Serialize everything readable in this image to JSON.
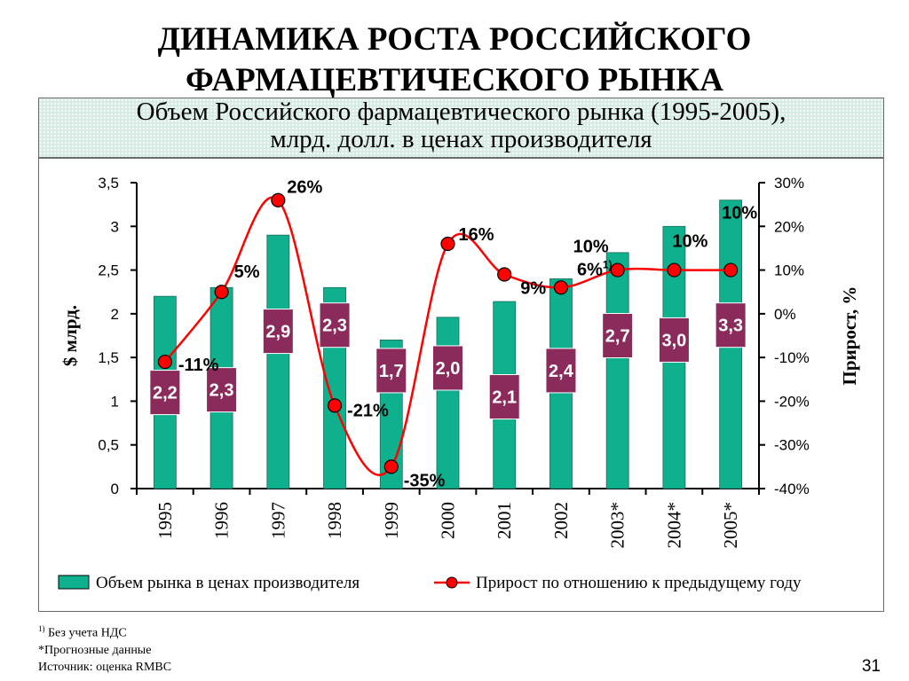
{
  "slide_title": "ДИНАМИКА РОСТА РОССИЙСКОГО ФАРМАЦЕВТИЧЕСКОГО РЫНКА",
  "subtitle_line1": "Объем Российского фармацевтического рынка (1995-2005),",
  "subtitle_line2": "млрд. долл. в ценах производителя",
  "footnote_1_marker": "1)",
  "footnote_1": "Без учета НДС",
  "footnote_2": "*Прогнозные данные",
  "source": "Источник: оценка RMBC",
  "page_number": "31",
  "colors": {
    "bar": "#0fb08e",
    "label_box": "#8a2b5c",
    "line": "#ff0000",
    "subtitle_bg": "#d6ece4"
  },
  "chart_data": {
    "type": "bar+line",
    "categories": [
      "1995",
      "1996",
      "1997",
      "1998",
      "1999",
      "2000",
      "2001",
      "2002",
      "2003*",
      "2004*",
      "2005*"
    ],
    "series": [
      {
        "name": "Объем рынка в ценах производителя",
        "type": "bar",
        "axis": "left",
        "values": [
          2.2,
          2.3,
          2.9,
          2.3,
          1.7,
          1.96,
          2.14,
          2.4,
          2.7,
          3.0,
          3.3
        ],
        "labels": [
          "2,2",
          "2,3",
          "2,9",
          "2,3",
          "1,7",
          "2,0",
          "2,1",
          "2,4",
          "2,7",
          "3,0",
          "3,3"
        ]
      },
      {
        "name": "Прирост по отношению к предыдущему году",
        "type": "line",
        "axis": "right",
        "values": [
          -11,
          5,
          26,
          -21,
          -35,
          16,
          9,
          6,
          10,
          10,
          10
        ],
        "labels": [
          "-11%",
          "5%",
          "26%",
          "-21%",
          "-35%",
          "16%",
          "9%",
          "6%",
          "10%",
          "10%",
          "10%"
        ],
        "label_superscripts": [
          "",
          "",
          "",
          "",
          "",
          "",
          "",
          "1)",
          "",
          "",
          ""
        ]
      }
    ],
    "y_left": {
      "label": "$ млрд.",
      "range": [
        0,
        3.5
      ],
      "ticks": [
        "0",
        "0,5",
        "1",
        "1,5",
        "2",
        "2,5",
        "3",
        "3,5"
      ]
    },
    "y_right": {
      "label": "Прирост, %",
      "range": [
        -40,
        30
      ],
      "ticks": [
        "-40%",
        "-30%",
        "-20%",
        "-10%",
        "0%",
        "10%",
        "20%",
        "30%"
      ]
    },
    "grid": false,
    "legend_position": "bottom"
  }
}
